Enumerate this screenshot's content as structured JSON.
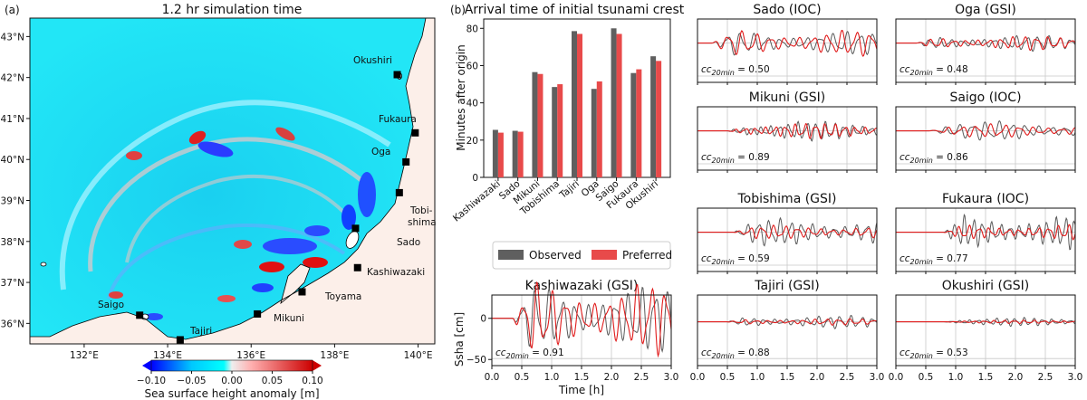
{
  "panel_a": {
    "label": "(a)",
    "title": "1.2 hr simulation time",
    "lat_ticks": [
      "43°N",
      "42°N",
      "41°N",
      "40°N",
      "39°N",
      "38°N",
      "37°N",
      "36°N"
    ],
    "lon_ticks": [
      "132°E",
      "134°E",
      "136°E",
      "138°E",
      "140°E"
    ],
    "stations": [
      {
        "name": "Okushiri",
        "lon": 139.5,
        "lat": 42.07
      },
      {
        "name": "Fukaura",
        "lon": 139.93,
        "lat": 40.65
      },
      {
        "name": "Oga",
        "lon": 139.71,
        "lat": 39.94
      },
      {
        "name": "Tobishima",
        "lon": 139.55,
        "lat": 39.19
      },
      {
        "name": "Sado",
        "lon": 138.5,
        "lat": 38.32
      },
      {
        "name": "Kashiwazaki",
        "lon": 138.55,
        "lat": 37.36
      },
      {
        "name": "Toyama",
        "lon": 137.22,
        "lat": 36.77
      },
      {
        "name": "Mikuni",
        "lon": 136.15,
        "lat": 36.23
      },
      {
        "name": "Saigo",
        "lon": 133.33,
        "lat": 36.2
      },
      {
        "name": "Tajiri",
        "lon": 134.3,
        "lat": 35.6
      }
    ],
    "station_labels": {
      "okushiri": "Okushiri",
      "fukaura": "Fukaura",
      "oga": "Oga",
      "tobishima_1": "Tobi-",
      "tobishima_2": "shima",
      "sado": "Sado",
      "kashiwazaki": "Kashiwazaki",
      "toyama": "Toyama",
      "mikuni": "Mikuni",
      "saigo": "Saigo",
      "tajiri": "Tajiri"
    },
    "colorbar": {
      "ticks": [
        "−0.10",
        "−0.05",
        "0.00",
        "0.05",
        "0.10"
      ],
      "label": "Sea surface height anomaly [m]",
      "colors": [
        "#0000ff",
        "#00ffff",
        "#e6e6e6",
        "#ff7f7f",
        "#d40000"
      ]
    }
  },
  "panel_b": {
    "label": "(b)",
    "chart_data": {
      "type": "bar",
      "title": "Arrival time of initial tsunami crest",
      "ylabel": "Minutes after origin",
      "ylim": [
        0,
        85
      ],
      "yticks": [
        "0",
        "20",
        "40",
        "60",
        "80"
      ],
      "categories": [
        "Kashiwazaki",
        "Sado",
        "Mikuni",
        "Tobishima",
        "Tajiri",
        "Oga",
        "Saigo",
        "Fukaura",
        "Okushiri"
      ],
      "series": [
        {
          "name": "Observed",
          "color": "#5f5f5f",
          "values": [
            25.5,
            25,
            56.5,
            48.5,
            78.5,
            47.5,
            80,
            56,
            65
          ]
        },
        {
          "name": "Preferred",
          "color": "#e84a4a",
          "values": [
            24,
            24.5,
            55.5,
            50,
            77,
            51.5,
            77,
            58,
            62.5
          ]
        }
      ],
      "legend": [
        "Observed",
        "Preferred"
      ]
    }
  },
  "waveforms": {
    "xlabel": "Time [h]",
    "ylabel": "Ssha [cm]",
    "xticks": [
      "0.0",
      "0.5",
      "1.0",
      "1.5",
      "2.0",
      "2.5",
      "3.0"
    ],
    "yticks": [
      "0",
      "−50"
    ],
    "cc_prefix": "cc",
    "cc_sub": "20min",
    "obs_color": "#5a5a5a",
    "pref_color": "#e11d1d",
    "panels": [
      {
        "title": "Sado (IOC)",
        "cc": "= 0.50"
      },
      {
        "title": "Oga (GSI)",
        "cc": "= 0.48"
      },
      {
        "title": "Mikuni (GSI)",
        "cc": "= 0.89"
      },
      {
        "title": "Saigo (IOC)",
        "cc": "= 0.86"
      },
      {
        "title": "Tobishima (GSI)",
        "cc": "= 0.59"
      },
      {
        "title": "Fukaura (IOC)",
        "cc": "= 0.77"
      },
      {
        "title": "Kashiwazaki (GSI)",
        "cc": "= 0.91"
      },
      {
        "title": "Tajiri (GSI)",
        "cc": "= 0.88"
      },
      {
        "title": "Okushiri (GSI)",
        "cc": "= 0.53"
      }
    ]
  }
}
